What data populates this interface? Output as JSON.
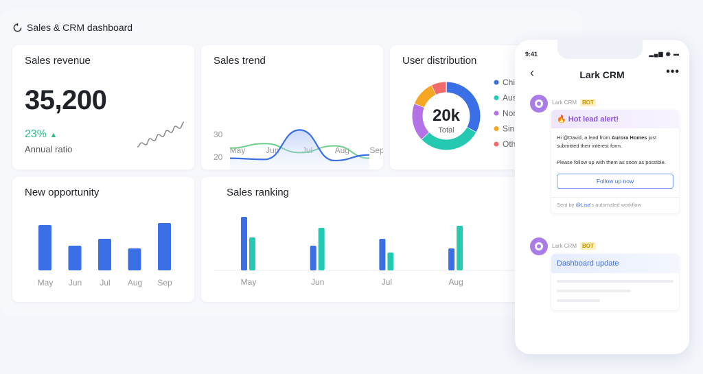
{
  "dashboard": {
    "title": "Sales & CRM dashboard",
    "icon": "refresh-icon"
  },
  "revenue": {
    "title": "Sales revenue",
    "value": "35,200",
    "ratio": "23%",
    "ratio_label": "Annual ratio",
    "sparkline": [
      2,
      3,
      2.5,
      4,
      3.5,
      5,
      4.5,
      6,
      5.5,
      7,
      6.5,
      8
    ]
  },
  "colors": {
    "blue": "#3b6fe6",
    "teal": "#25c9b2",
    "green": "#6fce8a",
    "purple": "#b373e6",
    "orange": "#f5a623",
    "red": "#f26b6b",
    "up": "#2ebd85"
  },
  "chart_data": [
    {
      "type": "line",
      "title": "Sales trend",
      "x": [
        "May",
        "Jun",
        "Jul",
        "Aug",
        "Sep"
      ],
      "yticks": [
        "30",
        "20",
        "0"
      ],
      "series": [
        {
          "values": [
            19,
            18,
            32,
            17,
            21
          ]
        },
        {
          "values": [
            24,
            26,
            22,
            25,
            19
          ]
        }
      ]
    },
    {
      "type": "pie",
      "title": "User distribution",
      "center_value": "20k",
      "center_label": "Total",
      "legend": [
        "Chi",
        "Aus",
        "Nor",
        "Sin",
        "Oth"
      ],
      "values": [
        33,
        30,
        18,
        12,
        7
      ]
    },
    {
      "type": "bar",
      "title": "New opportunity",
      "categories": [
        "May",
        "Jun",
        "Jul",
        "Aug",
        "Sep"
      ],
      "values": [
        66,
        36,
        46,
        32,
        69
      ]
    },
    {
      "type": "bar",
      "title": "Sales ranking",
      "categories": [
        "May",
        "Jun",
        "Jul",
        "Aug"
      ],
      "series": [
        {
          "values": [
            78,
            36,
            46,
            32
          ]
        },
        {
          "values": [
            48,
            62,
            26,
            65
          ]
        }
      ]
    }
  ],
  "phone": {
    "time": "9:41",
    "status": "▂▄▆ ◉ ▬",
    "title": "Lark CRM",
    "more": "•••",
    "msg1": {
      "sender": "Lark CRM",
      "badge": "BOT",
      "header": "🔥 Hot lead alert!",
      "line_a": "Hi @David, a lead from ",
      "company": "Aurora Homes",
      "line_b": " just submitted their interest form.",
      "line_c": "Please follow up with them as soon as possible.",
      "button": "Follow up now",
      "footer_a": "Sent by ",
      "footer_user": "@Lisa",
      "footer_b": "'s automated workflow"
    },
    "msg2": {
      "sender": "Lark CRM",
      "badge": "BOT",
      "header": "Dashboard update"
    }
  }
}
